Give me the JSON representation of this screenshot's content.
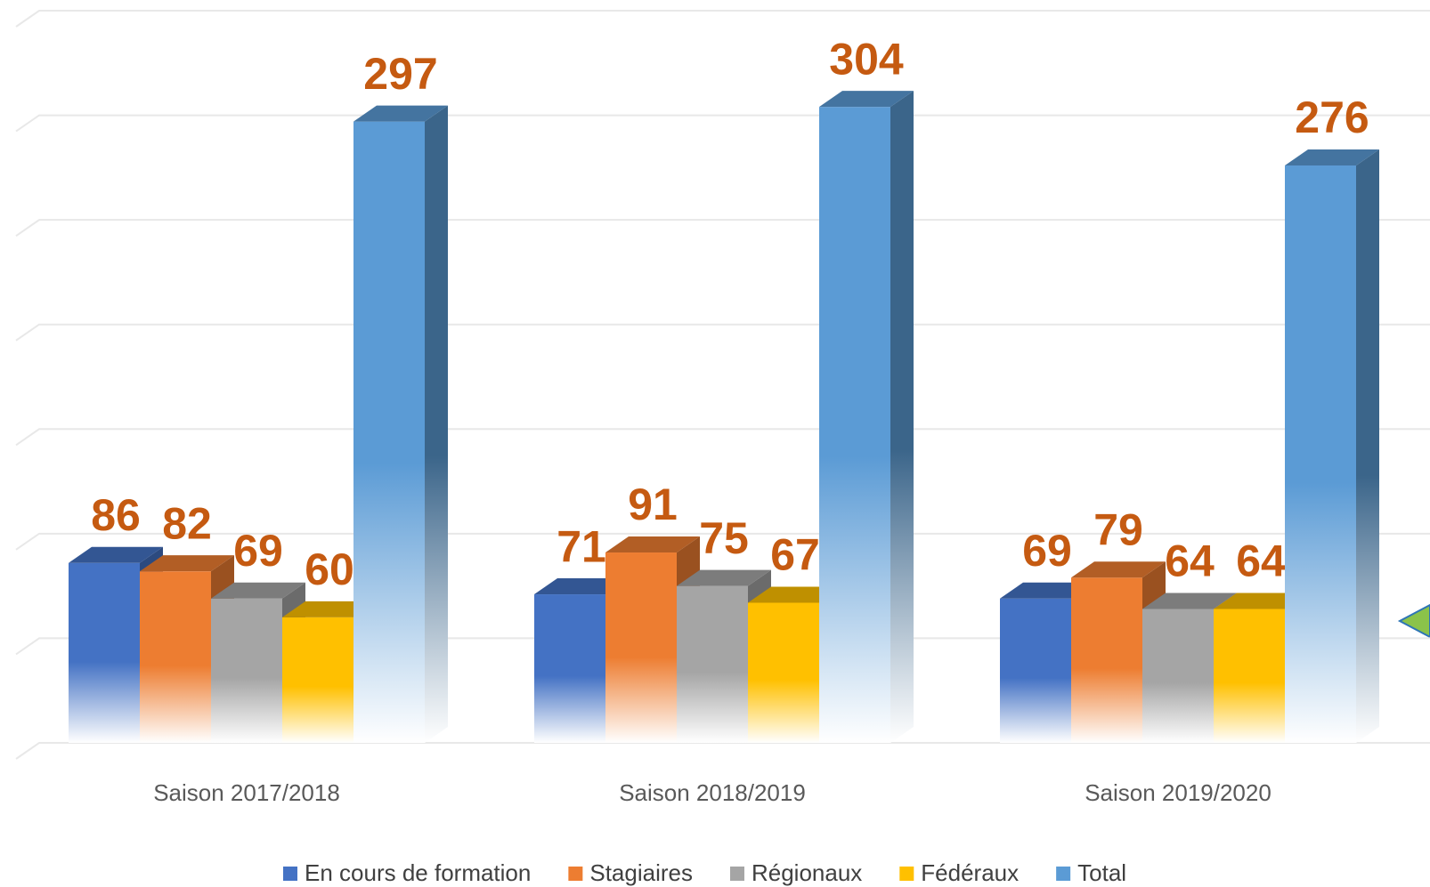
{
  "chart_data": {
    "type": "bar3d",
    "categories": [
      "Saison 2017/2018",
      "Saison 2018/2019",
      "Saison 2019/2020"
    ],
    "series": [
      {
        "name": "En cours de formation",
        "color": "#4472C4",
        "values": [
          86,
          71,
          69
        ]
      },
      {
        "name": "Stagiaires",
        "color": "#ED7D31",
        "values": [
          82,
          91,
          79
        ]
      },
      {
        "name": "Régionaux",
        "color": "#A5A5A5",
        "values": [
          69,
          75,
          64
        ]
      },
      {
        "name": "Fédéraux",
        "color": "#FFC000",
        "values": [
          60,
          67,
          64
        ]
      },
      {
        "name": "Total",
        "color": "#5B9BD5",
        "values": [
          297,
          304,
          276
        ]
      }
    ],
    "ylim": [
      0,
      350
    ],
    "yticks": [
      0,
      50,
      100,
      150,
      200,
      250,
      300,
      350
    ],
    "grid": true,
    "legend": "bottom"
  }
}
